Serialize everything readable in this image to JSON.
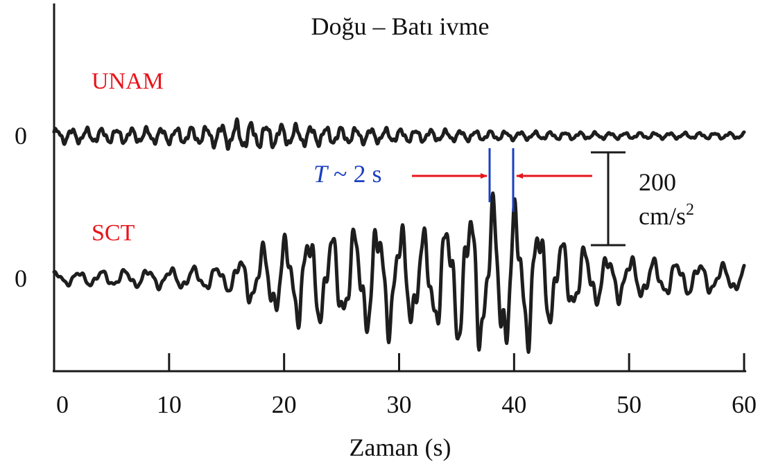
{
  "chart_data": {
    "type": "line",
    "title": "Doğu – Batı ivme",
    "xlabel": "Zaman (s)",
    "ylabel": "",
    "xlim": [
      0,
      60
    ],
    "x_ticks": [
      "0",
      "10",
      "20",
      "30",
      "40",
      "50",
      "60"
    ],
    "grid": false,
    "series": [
      {
        "name": "UNAM",
        "color": "#e8141b",
        "baseline_label": "0",
        "amplitude_profile": [
          [
            0,
            12
          ],
          [
            5,
            12
          ],
          [
            10,
            13
          ],
          [
            13,
            15
          ],
          [
            15,
            20
          ],
          [
            16,
            24
          ],
          [
            18,
            20
          ],
          [
            21,
            17
          ],
          [
            25,
            14
          ],
          [
            30,
            11
          ],
          [
            35,
            9
          ],
          [
            40,
            7
          ],
          [
            45,
            6
          ],
          [
            50,
            5
          ],
          [
            55,
            5
          ],
          [
            60,
            5
          ]
        ]
      },
      {
        "name": "SCT",
        "color": "#e8141b",
        "baseline_label": "0",
        "amplitude_profile": [
          [
            0,
            10
          ],
          [
            10,
            16
          ],
          [
            15,
            20
          ],
          [
            16,
            30
          ],
          [
            18,
            50
          ],
          [
            20,
            65
          ],
          [
            22,
            75
          ],
          [
            25,
            70
          ],
          [
            28,
            92
          ],
          [
            30,
            85
          ],
          [
            32,
            72
          ],
          [
            34,
            90
          ],
          [
            36,
            112
          ],
          [
            38,
            120
          ],
          [
            39.5,
            122
          ],
          [
            41,
            110
          ],
          [
            43,
            75
          ],
          [
            45,
            55
          ],
          [
            48,
            38
          ],
          [
            52,
            30
          ],
          [
            56,
            25
          ],
          [
            60,
            20
          ]
        ]
      }
    ],
    "annotations": {
      "period": {
        "italic": "T",
        "rest": " ~ 2 s",
        "color": "#1a3fc0"
      },
      "scale": {
        "value": "200",
        "unit": "cm/s",
        "superscript": "2"
      }
    }
  }
}
